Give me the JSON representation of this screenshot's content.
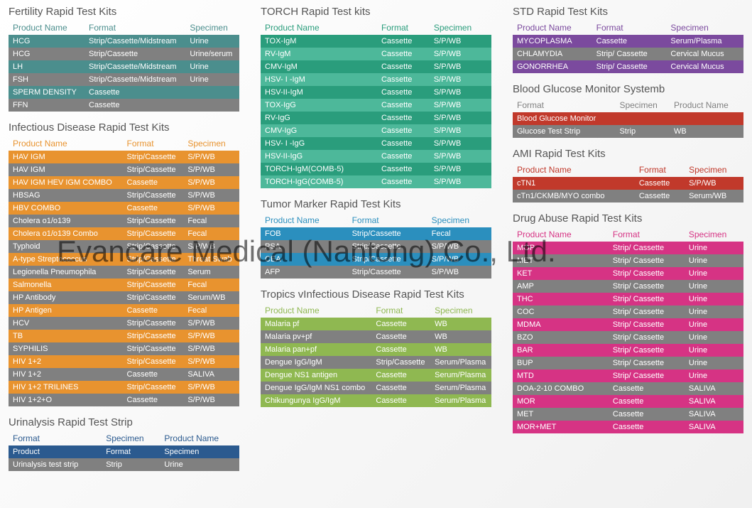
{
  "watermark": "Evancare Medical (Nantong) Co., Ltd.",
  "colors": {
    "teal": "#4b8e8d",
    "teal_alt": "#7aa9a8",
    "orange": "#e8932f",
    "gray": "#808080",
    "green_dark": "#2a9d7c",
    "green_alt": "#4db89a",
    "blue": "#2b8fbe",
    "blue_alt": "#5ab0d4",
    "olive": "#8fb851",
    "olive_alt": "#a9c974",
    "purple": "#7b4a9e",
    "purple_alt": "#9b6bb8",
    "red": "#c1392b",
    "red_alt": "#d95c4e",
    "magenta": "#d63384",
    "magenta_alt": "#e560a0",
    "navy": "#2b5a8f"
  },
  "sections": {
    "fertility": {
      "title": "Fertility Rapid Test Kits",
      "header_color": "#4b8e8d",
      "row_color": "#4b8e8d",
      "alt_color": "#808080",
      "cols": [
        "Product Name",
        "Format",
        "Specimen"
      ],
      "rows": [
        [
          "HCG",
          "Strip/Cassette/Midstream",
          "Urine"
        ],
        [
          "HCG",
          "Strip/Cassette",
          "Urine/serum"
        ],
        [
          "LH",
          "Strip/Cassette/Midstream",
          "Urine"
        ],
        [
          "FSH",
          "Strip/Cassette/Midstream",
          "Urine"
        ],
        [
          "SPERM DENSITY",
          "Cassette",
          ""
        ],
        [
          "FFN",
          "Cassette",
          ""
        ]
      ]
    },
    "infectious": {
      "title": "Infectious Disease Rapid Test Kits",
      "header_color": "#e8932f",
      "row_color": "#e8932f",
      "alt_color": "#808080",
      "cols": [
        "Product Name",
        "Format",
        "Specimen"
      ],
      "rows": [
        [
          "HAV IGM",
          "Strip/Cassette",
          "S/P/WB"
        ],
        [
          "HAV IGM",
          "Strip/Cassette",
          "S/P/WB"
        ],
        [
          "HAV IGM HEV IGM COMBO",
          "Cassette",
          "S/P/WB"
        ],
        [
          "HBSAG",
          "Strip/Cassette",
          "S/P/WB"
        ],
        [
          "HBV COMBO",
          "Cassette",
          "S/P/WB"
        ],
        [
          "Cholera o1/o139",
          "Strip/Cassette",
          "Fecal"
        ],
        [
          "Cholera o1/o139 Combo",
          "Strip/Cassette",
          "Fecal"
        ],
        [
          "Typhoid",
          "Strip/Cassette",
          "S/P/WB"
        ],
        [
          "A-type Streptococcus",
          "Strip/Cassette",
          "Throat Swab"
        ],
        [
          "Legionella Pneumophila",
          "Strip/Cassette",
          "Serum"
        ],
        [
          "Salmonella",
          "Strip/Cassette",
          "Fecal"
        ],
        [
          "HP Antibody",
          "Strip/Cassette",
          "Serum/WB"
        ],
        [
          "HP Antigen",
          "Cassette",
          "Fecal"
        ],
        [
          "HCV",
          "Strip/Cassette",
          "S/P/WB"
        ],
        [
          "TB",
          "Strip/Cassette",
          "S/P/WB"
        ],
        [
          "SYPHILIS",
          "Strip/Cassette",
          "S/P/WB"
        ],
        [
          "HIV 1+2",
          "Strip/Cassette",
          "S/P/WB"
        ],
        [
          "HIV 1+2",
          "Cassette",
          "SALIVA"
        ],
        [
          "HIV 1+2 TRILINES",
          "Strip/Cassette",
          "S/P/WB"
        ],
        [
          "HIV 1+2+O",
          "Cassette",
          "S/P/WB"
        ]
      ]
    },
    "urinalysis": {
      "title": "Urinalysis Rapid Test Strip",
      "header_color": "#2b5a8f",
      "row_color": "#2b5a8f",
      "alt_color": "#808080",
      "cols": [
        "Format",
        "Specimen",
        "Product Name"
      ],
      "rows": [
        [
          "Product",
          "Format",
          "Specimen"
        ],
        [
          "Urinalysis test strip",
          "Strip",
          "Urine"
        ]
      ]
    },
    "torch": {
      "title": "TORCH Rapid Test kits",
      "header_color": "#2a9d7c",
      "row_color": "#2a9d7c",
      "alt_color": "#4db89a",
      "cols": [
        "Product Name",
        "Format",
        "Specimen"
      ],
      "rows": [
        [
          "TOX-IgM",
          "Cassette",
          "S/P/WB"
        ],
        [
          "RV-IgM",
          "Cassette",
          "S/P/WB"
        ],
        [
          "CMV-IgM",
          "Cassette",
          "S/P/WB"
        ],
        [
          "HSV- I -IgM",
          "Cassette",
          "S/P/WB"
        ],
        [
          "HSV-II-IgM",
          "Cassette",
          "S/P/WB"
        ],
        [
          "TOX-IgG",
          "Cassette",
          "S/P/WB"
        ],
        [
          "RV-IgG",
          "Cassette",
          "S/P/WB"
        ],
        [
          "CMV-IgG",
          "Cassette",
          "S/P/WB"
        ],
        [
          "HSV- I -IgG",
          "Cassette",
          "S/P/WB"
        ],
        [
          "HSV-II-IgG",
          "Cassette",
          "S/P/WB"
        ],
        [
          "TORCH-IgM(COMB-5)",
          "Cassette",
          "S/P/WB"
        ],
        [
          "TORCH-IgG(COMB-5)",
          "Cassette",
          "S/P/WB"
        ]
      ]
    },
    "tumor": {
      "title": "Tumor Marker Rapid Test Kits",
      "header_color": "#2b8fbe",
      "row_color": "#2b8fbe",
      "alt_color": "#808080",
      "cols": [
        "Product Name",
        "Format",
        "Specimen"
      ],
      "rows": [
        [
          "FOB",
          "Strip/Cassette",
          "Fecal"
        ],
        [
          "PSA",
          "Strip/Cassette",
          "S/P/WB"
        ],
        [
          "CEA",
          "Strip/Cassette",
          "S/P/WB"
        ],
        [
          "AFP",
          "Strip/Cassette",
          "S/P/WB"
        ]
      ]
    },
    "tropics": {
      "title": "Tropics vInfectious Disease Rapid Test Kits",
      "header_color": "#8fb851",
      "row_color": "#8fb851",
      "alt_color": "#808080",
      "cols": [
        "Product Name",
        "Format",
        "Specimen"
      ],
      "rows": [
        [
          "Malaria pf",
          "Cassette",
          "WB"
        ],
        [
          "Malaria pv+pf",
          "Cassette",
          "WB"
        ],
        [
          "Malaria pan+pf",
          "Cassette",
          "WB"
        ],
        [
          "Dengue IgG/IgM",
          "Strip/Cassette",
          "Serum/Plasma"
        ],
        [
          "Dengue NS1 antigen",
          "Cassette",
          "Serum/Plasma"
        ],
        [
          "Dengue IgG/IgM NS1 combo",
          "Cassette",
          "Serum/Plasma"
        ],
        [
          "Chikungunya IgG/IgM",
          "Cassette",
          "Serum/Plasma"
        ]
      ]
    },
    "std": {
      "title": "STD Rapid Test Kits",
      "header_color": "#7b4a9e",
      "row_color": "#7b4a9e",
      "alt_color": "#808080",
      "cols": [
        "Product Name",
        "Format",
        "Specimen"
      ],
      "rows": [
        [
          "MYCOPLASMA",
          "Cassette",
          "Serum/Plasma"
        ],
        [
          "CHLAMYDIA",
          "Strip/ Cassette",
          "Cervical Mucus"
        ],
        [
          "GONORRHEA",
          "Strip/ Cassette",
          "Cervical Mucus"
        ]
      ]
    },
    "glucose": {
      "title": "Blood Glucose Monitor Systemb",
      "header_color": "#808080",
      "row_color": "#c1392b",
      "alt_color": "#808080",
      "cols": [
        "Format",
        "Specimen",
        "Product Name"
      ],
      "rows": [
        [
          "Blood Glucose Monitor",
          "",
          ""
        ],
        [
          "Glucose Test Strip",
          "Strip",
          "WB"
        ]
      ]
    },
    "ami": {
      "title": "AMI  Rapid Test Kits",
      "header_color": "#c1392b",
      "row_color": "#c1392b",
      "alt_color": "#808080",
      "cols": [
        "Product Name",
        "Format",
        "Specimen"
      ],
      "rows": [
        [
          "cTN1",
          "Cassette",
          "S/P/WB"
        ],
        [
          "cTn1/CKMB/MYO combo",
          "Cassette",
          "Serum/WB"
        ]
      ]
    },
    "drug": {
      "title": "Drug Abuse Rapid Test Kits",
      "header_color": "#d63384",
      "row_color": "#d63384",
      "alt_color": "#808080",
      "cols": [
        "Product Name",
        "Format",
        "Specimen"
      ],
      "rows": [
        [
          "MOP",
          "Strip/ Cassette",
          "Urine"
        ],
        [
          "MET",
          "Strip/ Cassette",
          "Urine"
        ],
        [
          "KET",
          "Strip/ Cassette",
          "Urine"
        ],
        [
          "AMP",
          "Strip/ Cassette",
          "Urine"
        ],
        [
          "THC",
          "Strip/ Cassette",
          "Urine"
        ],
        [
          "COC",
          "Strip/ Cassette",
          "Urine"
        ],
        [
          "MDMA",
          "Strip/ Cassette",
          "Urine"
        ],
        [
          "BZO",
          "Strip/ Cassette",
          "Urine"
        ],
        [
          "BAR",
          "Strip/ Cassette",
          "Urine"
        ],
        [
          "BUP",
          "Strip/ Cassette",
          "Urine"
        ],
        [
          "MTD",
          "Strip/ Cassette",
          "Urine"
        ],
        [
          "DOA-2-10 COMBO",
          "Cassette",
          "SALIVA"
        ],
        [
          "MOR",
          "Cassette",
          "SALIVA"
        ],
        [
          "MET",
          "Cassette",
          "SALIVA"
        ],
        [
          "MOR+MET",
          "Cassette",
          "SALIVA"
        ]
      ]
    }
  },
  "layout": {
    "col1": [
      "fertility",
      "infectious",
      "urinalysis"
    ],
    "col2": [
      "torch",
      "tumor",
      "tropics"
    ],
    "col3": [
      "std",
      "glucose",
      "ami",
      "drug"
    ]
  }
}
